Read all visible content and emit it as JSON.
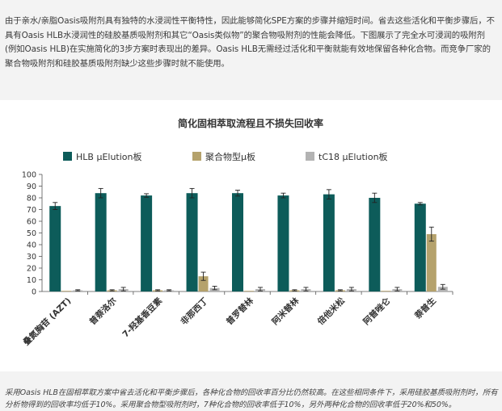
{
  "intro_text": "由于亲水/亲脂Oasis吸附剂具有独特的水浸润性平衡特性，因此能够简化SPE方案的步骤并缩短时间。省去这些活化和平衡步骤后，不具有Oasis HLB水浸润性的硅胶基质吸附剂和其它“Oasis类似物”的聚合物吸附剂的性能会降低。下图展示了完全水可浸润的吸附剂(例如Oasis HLB)在实施简化的3步方案时表现出的差异。Oasis HLB无需经过活化和平衡就能有效地保留各种化合物。而竞争厂家的聚合物吸附剂和硅胶基质吸附剂缺少这些步骤时就不能使用。",
  "caption_text": "采用Oasis HLB在固相萃取方案中省去活化和平衡步骤后，各种化合物的回收率百分比仍然较高。在这些相同条件下，采用硅胶基质吸附剂时，所有分析物得到的回收率均低于10%。采用聚合物型吸附剂时，7种化合物的回收率低于10%，另外两种化合物的回收率低于20%和50%。",
  "chart_data": {
    "type": "bar",
    "title": "简化固相萃取流程且不损失回收率",
    "categories": [
      "叠氮胸苷 (AZT)",
      "普萘洛尔",
      "7-羟基香豆素",
      "非那西丁",
      "普罗替林",
      "阿米替林",
      "倍他米松",
      "阿普唑仑",
      "萘普生"
    ],
    "ylim": [
      0,
      100
    ],
    "yticks": [
      0,
      10,
      20,
      30,
      40,
      50,
      60,
      70,
      80,
      90,
      100
    ],
    "grid": false,
    "legend_position": "top",
    "series": [
      {
        "name": "HLB μElution板",
        "color": "#0d5c5a",
        "values": [
          73,
          84,
          82,
          84,
          84,
          82,
          83,
          80,
          75
        ],
        "errors": [
          3,
          4,
          1.5,
          4,
          2.5,
          2,
          4,
          4,
          1
        ]
      },
      {
        "name": "聚合物型μ板",
        "color": "#b5a26c",
        "values": [
          0,
          1,
          1,
          13,
          0,
          1,
          1,
          0,
          49
        ],
        "errors": [
          0,
          0.5,
          0.5,
          3.5,
          0,
          0.5,
          0.5,
          0,
          6
        ]
      },
      {
        "name": "tC18 μElution板",
        "color": "#b3b3b3",
        "values": [
          1,
          2,
          1,
          3,
          2,
          2,
          2,
          2,
          4
        ],
        "errors": [
          0.5,
          1.5,
          0.5,
          1.5,
          1.5,
          1.5,
          1.5,
          1.5,
          2
        ]
      }
    ]
  }
}
